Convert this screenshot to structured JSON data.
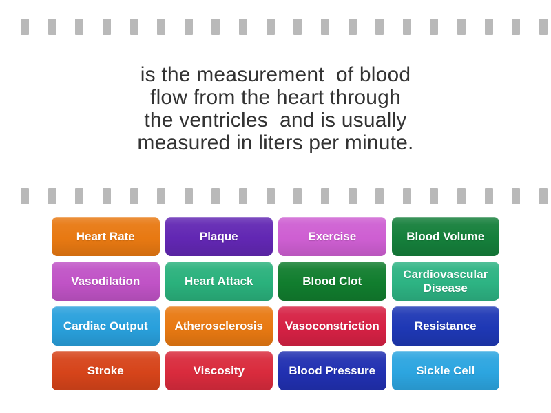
{
  "question": {
    "text": "is the measurement  of blood\nflow from the heart through\nthe ventricles  and is usually\nmeasured in liters per minute."
  },
  "tiles": [
    {
      "label": "Heart Rate",
      "color": "#e87912"
    },
    {
      "label": "Plaque",
      "color": "#6227b3"
    },
    {
      "label": "Exercise",
      "color": "#ce5fd2"
    },
    {
      "label": "Blood Volume",
      "color": "#157f3b"
    },
    {
      "label": "Vasodilation",
      "color": "#c053c6"
    },
    {
      "label": "Heart Attack",
      "color": "#2ab17c"
    },
    {
      "label": "Blood Clot",
      "color": "#117d2e"
    },
    {
      "label": "Cardiovascular Disease",
      "color": "#2db383"
    },
    {
      "label": "Cardiac Output",
      "color": "#29a0dc"
    },
    {
      "label": "Atherosclerosis",
      "color": "#e87912"
    },
    {
      "label": "Vasoconstriction",
      "color": "#d62144"
    },
    {
      "label": "Resistance",
      "color": "#1e38b5"
    },
    {
      "label": "Stroke",
      "color": "#d6441a"
    },
    {
      "label": "Viscosity",
      "color": "#d92b3d"
    },
    {
      "label": "Blood Pressure",
      "color": "#2130b1"
    },
    {
      "label": "Sickle Cell",
      "color": "#2ca5e0"
    }
  ],
  "decor": {
    "sprocket_color": "#b9b9b9",
    "sprocket_count": 20
  },
  "colors": {
    "background": "#ffffff",
    "question_text": "#333333",
    "tile_text": "#ffffff"
  }
}
